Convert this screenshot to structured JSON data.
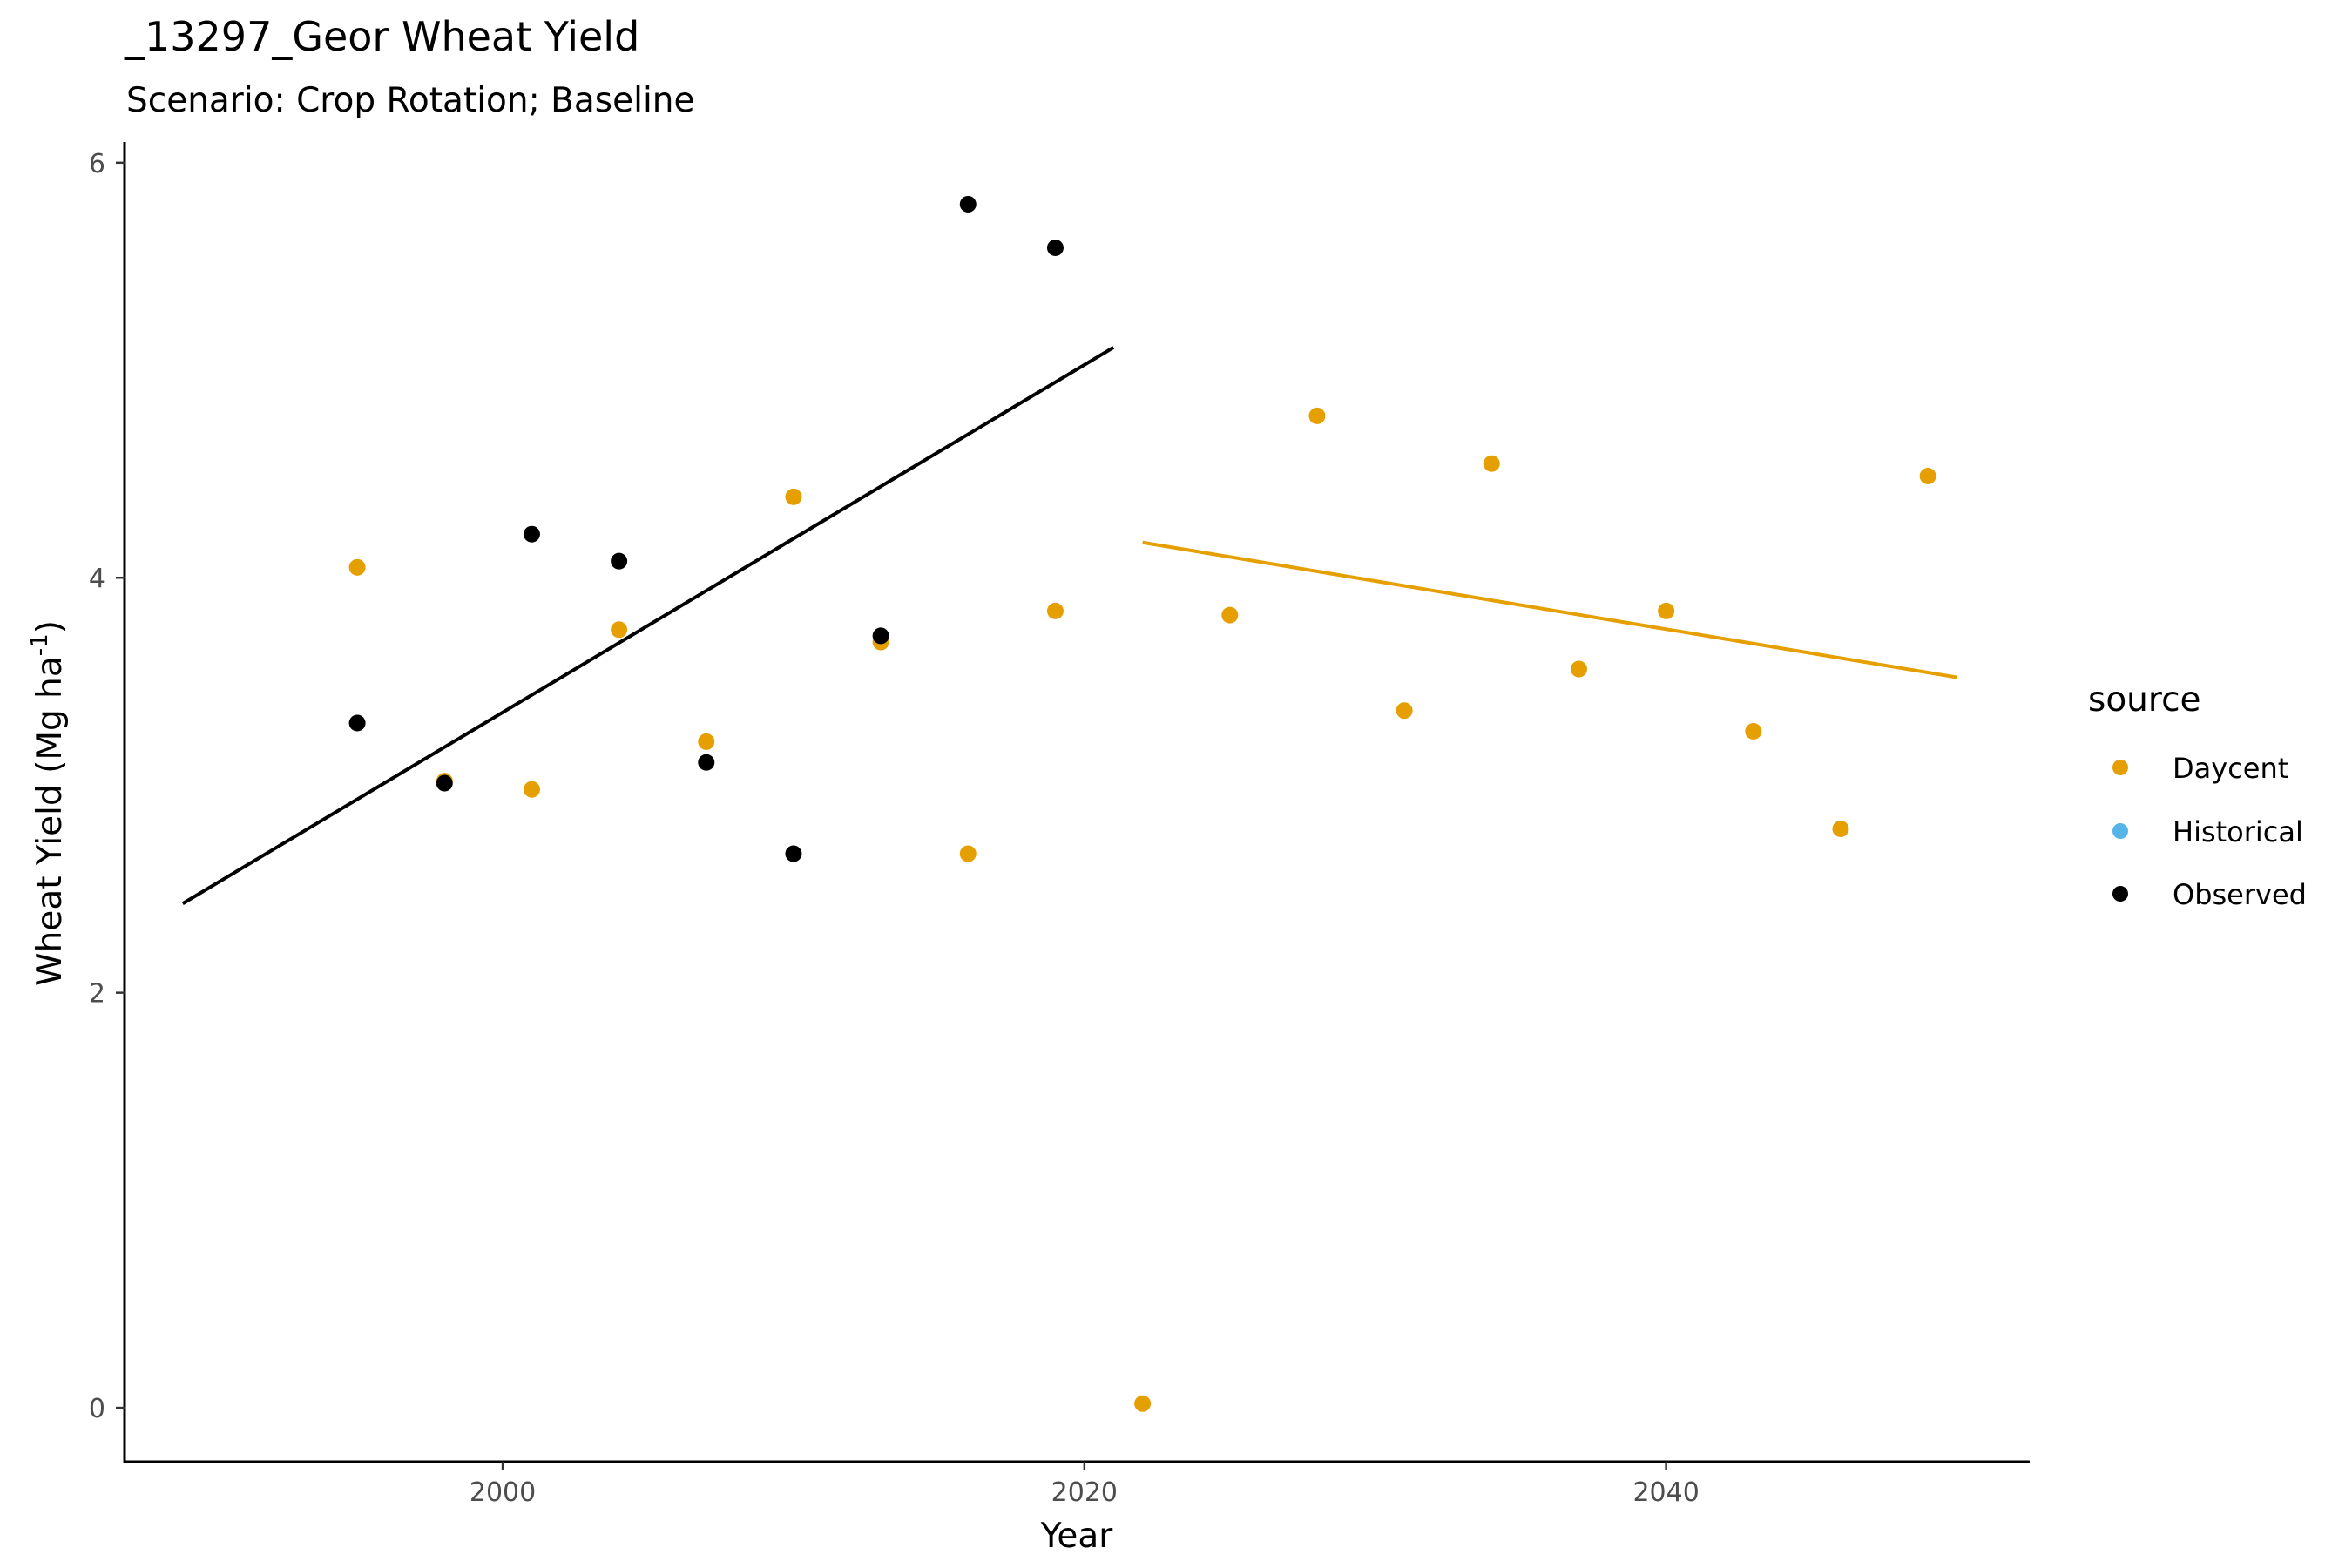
{
  "chart_data": {
    "type": "scatter",
    "title": "_13297_Geor Wheat Yield",
    "subtitle": "Scenario: Crop Rotation; Baseline",
    "xlabel": "Year",
    "ylabel_main": "Wheat Yield (Mg ha",
    "ylabel_sup": "-1",
    "ylabel_close": ")",
    "xlim": [
      1987,
      2052.5
    ],
    "ylim": [
      -0.26,
      6.1
    ],
    "x_ticks": [
      2000,
      2020,
      2040
    ],
    "y_ticks": [
      0,
      2,
      4,
      6
    ],
    "grid": false,
    "legend": {
      "title": "source",
      "position": "right",
      "entries": [
        {
          "name": "Daycent",
          "color": "#E69F00"
        },
        {
          "name": "Historical",
          "color": "#56B4E9"
        },
        {
          "name": "Observed",
          "color": "#000000"
        }
      ]
    },
    "series": [
      {
        "name": "Daycent",
        "color": "#E69F00",
        "x": [
          1995,
          1998,
          2001,
          2004,
          2007,
          2010,
          2013,
          2016,
          2019,
          2022,
          2025,
          2028,
          2031,
          2034,
          2037,
          2040,
          2043,
          2046,
          2049
        ],
        "y": [
          4.05,
          3.02,
          2.98,
          3.75,
          3.21,
          4.39,
          3.69,
          2.67,
          3.84,
          0.02,
          3.82,
          4.78,
          3.36,
          4.55,
          3.56,
          3.84,
          3.26,
          2.79,
          4.49
        ]
      },
      {
        "name": "Observed",
        "color": "#000000",
        "x": [
          1995,
          1998,
          2001,
          2004,
          2007,
          2010,
          2013,
          2016,
          2019
        ],
        "y": [
          3.3,
          3.01,
          4.21,
          4.08,
          3.11,
          2.67,
          3.72,
          5.8,
          5.59
        ]
      }
    ],
    "trend_lines": [
      {
        "name": "Observed",
        "color": "#000000",
        "x": [
          1989,
          2021
        ],
        "y": [
          2.43,
          5.11
        ]
      },
      {
        "name": "Daycent",
        "color": "#E69F00",
        "x": [
          2022,
          2050
        ],
        "y": [
          4.17,
          3.52
        ]
      }
    ]
  }
}
